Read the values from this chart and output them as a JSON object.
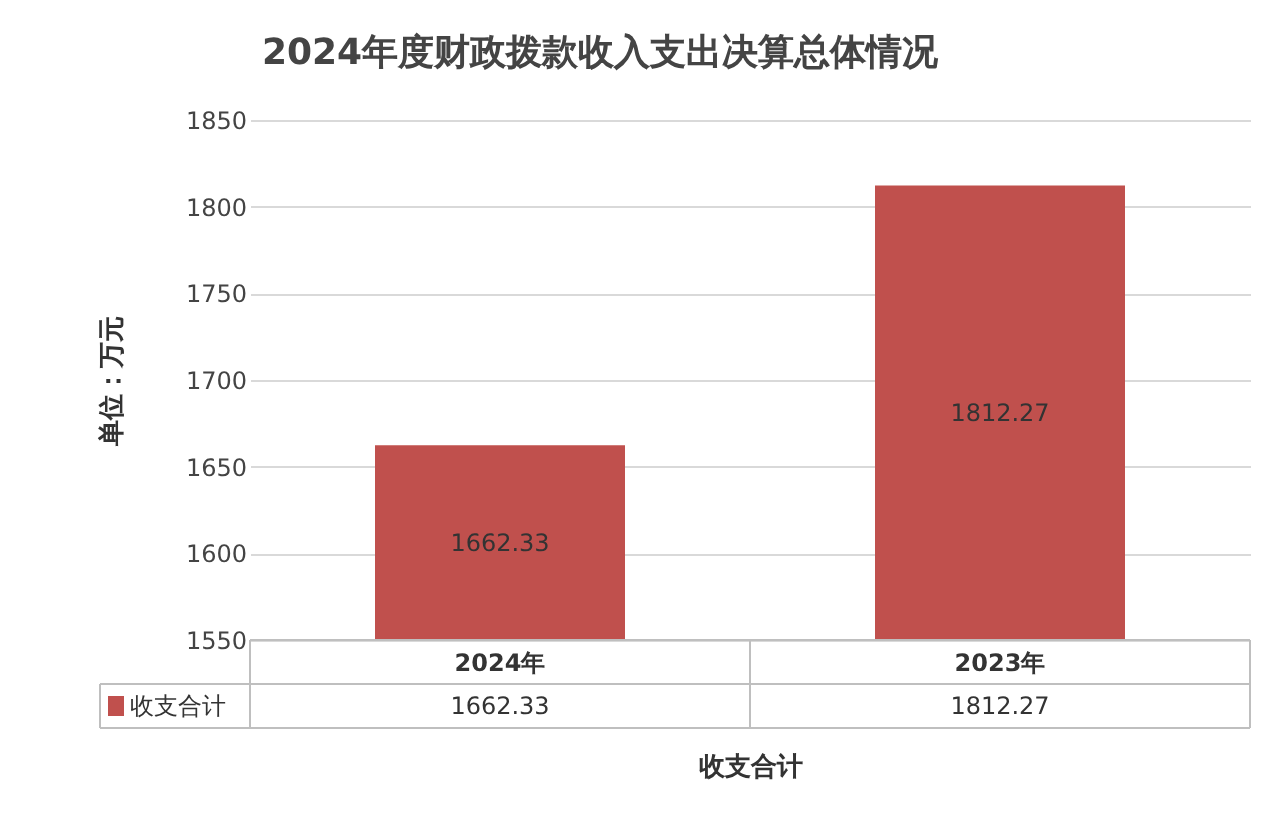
{
  "chart_data": {
    "type": "bar",
    "title": "2024年度财政拨款收入支出决算总体情况",
    "ylabel": "单位：万元",
    "xlabel": "收支合计",
    "categories": [
      "2024年",
      "2023年"
    ],
    "series": [
      {
        "name": "收支合计",
        "color": "#c0504d",
        "values": [
          1662.33,
          1812.27
        ]
      }
    ],
    "annotations": [
      "1662.33",
      "1812.27"
    ],
    "ylim": [
      1550,
      1850
    ],
    "yticks": [
      1550,
      1600,
      1650,
      1700,
      1750,
      1800,
      1850
    ],
    "grid": "y",
    "data_labels": true,
    "legend": "bottom left"
  }
}
